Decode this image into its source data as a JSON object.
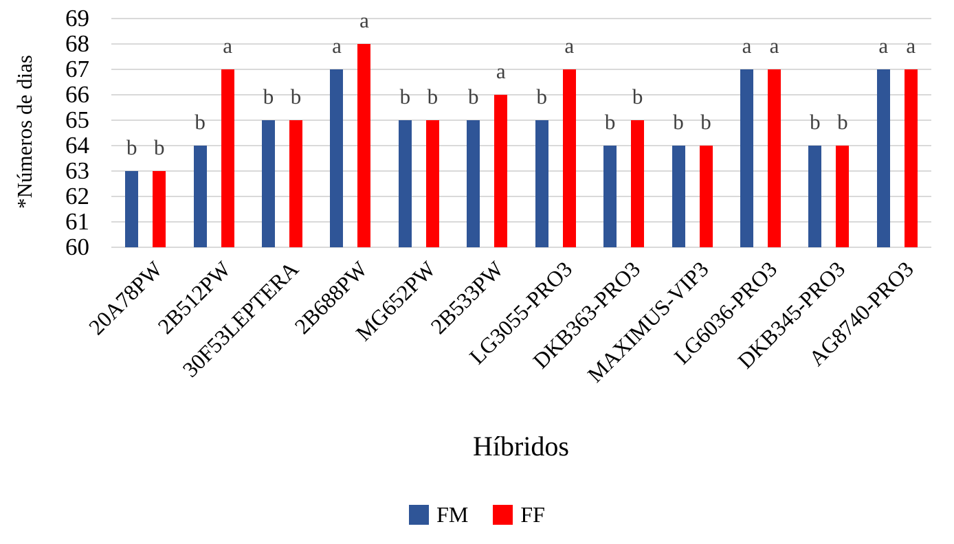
{
  "chart_data": {
    "type": "bar",
    "title": "",
    "xlabel": "Híbridos",
    "ylabel": "*Números de dias",
    "ylim": [
      60,
      69
    ],
    "yticks": [
      60,
      61,
      62,
      63,
      64,
      65,
      66,
      67,
      68,
      69
    ],
    "grid": true,
    "gridline_color": "#D9D9D9",
    "annotation_color": "#404040",
    "legend_position": "bottom-center",
    "categories": [
      "20A78PW",
      "2B512PW",
      "30F53LEPTERA",
      "2B688PW",
      "MG652PW",
      "2B533PW",
      "LG3055-PRO3",
      "DKB363-PRO3",
      "MAXIMUS-VIP3",
      "LG6036-PRO3",
      "DKB345-PRO3",
      "AG8740-PRO3"
    ],
    "series": [
      {
        "name": "FM",
        "color": "#2F5597",
        "values": [
          63,
          64,
          65,
          67,
          65,
          65,
          65,
          64,
          64,
          67,
          64,
          67
        ],
        "letters": [
          "b",
          "b",
          "b",
          "a",
          "b",
          "b",
          "b",
          "b",
          "b",
          "a",
          "b",
          "a"
        ]
      },
      {
        "name": "FF",
        "color": "#FF0000",
        "values": [
          63,
          67,
          65,
          68,
          65,
          66,
          67,
          65,
          64,
          67,
          64,
          67
        ],
        "letters": [
          "b",
          "a",
          "b",
          "a",
          "b",
          "a",
          "a",
          "b",
          "b",
          "a",
          "b",
          "a"
        ]
      }
    ]
  },
  "legend": {
    "items": [
      {
        "label": "FM",
        "color": "#2F5597"
      },
      {
        "label": "FF",
        "color": "#FF0000"
      }
    ]
  }
}
